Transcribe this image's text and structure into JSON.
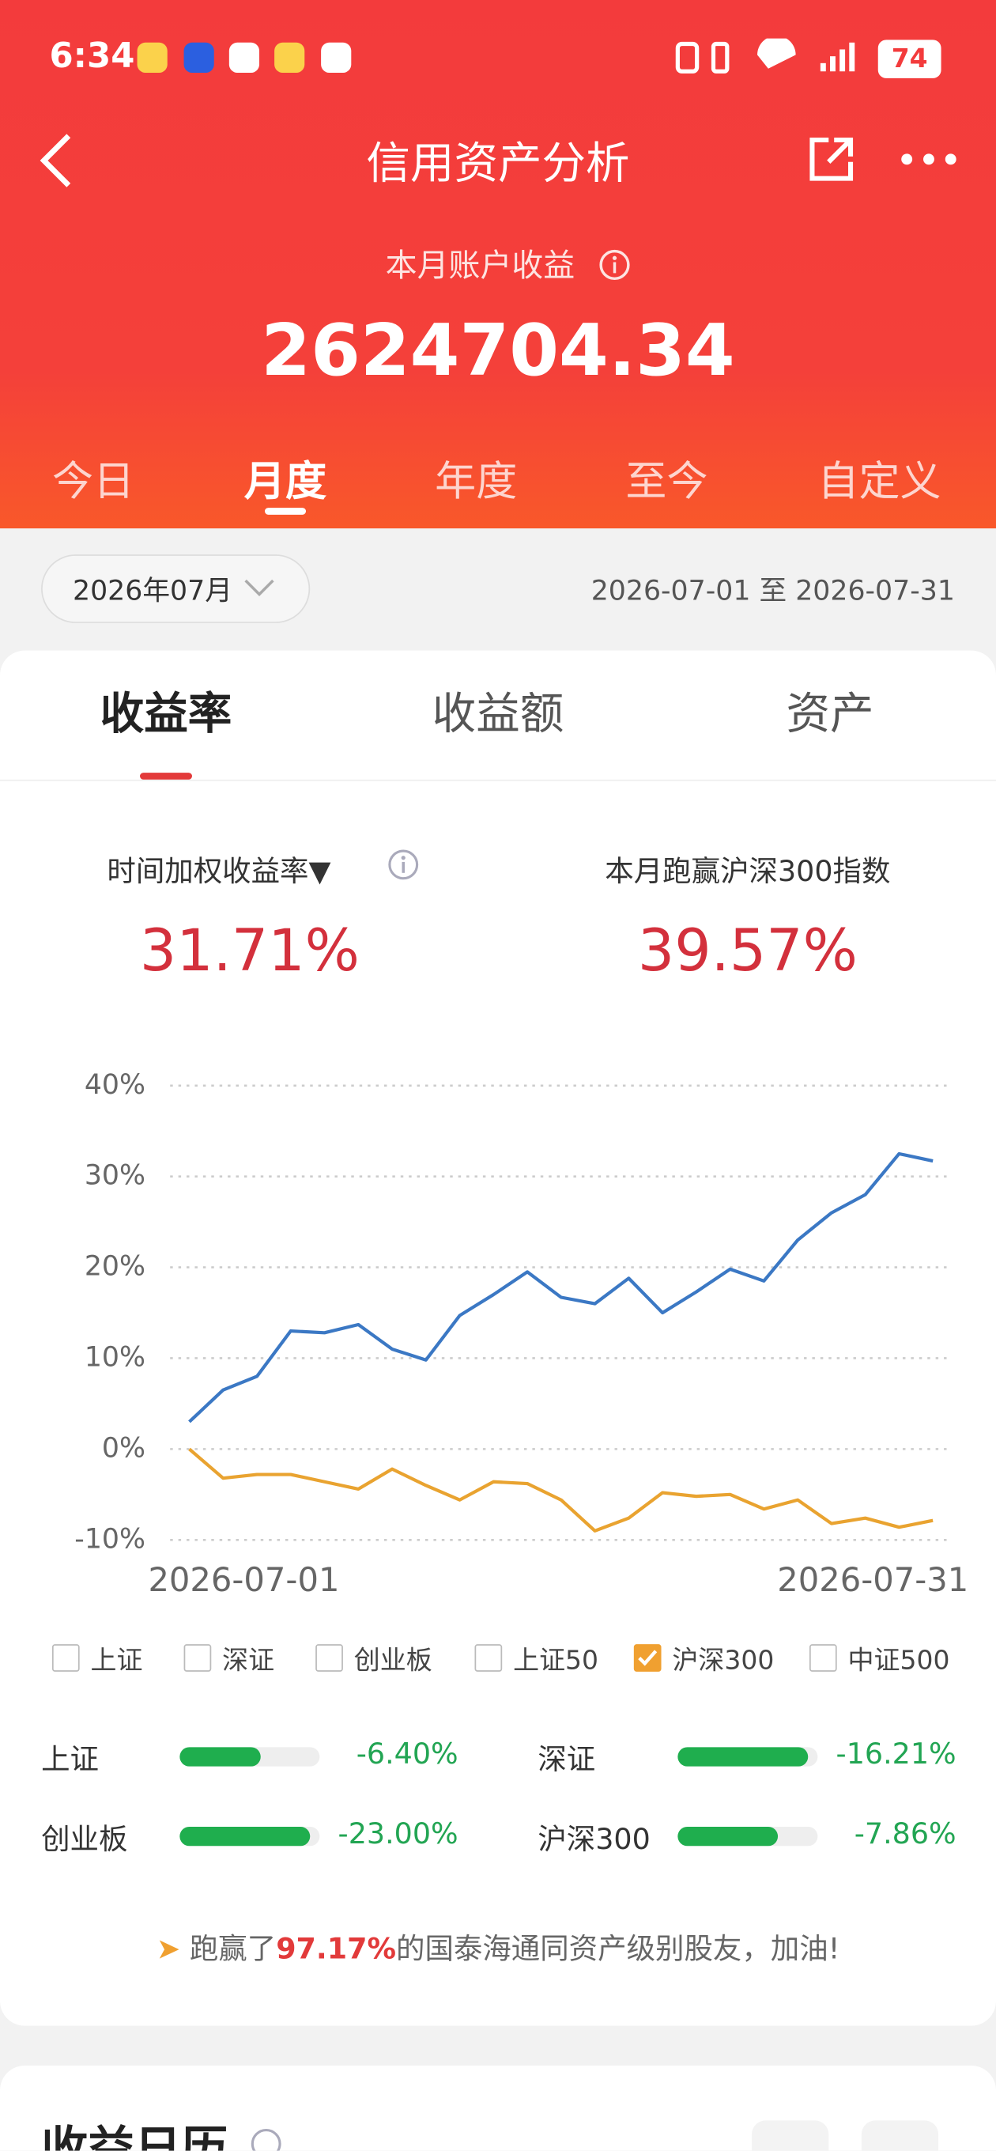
{
  "status_bar": {
    "time": "6:34",
    "battery": "74"
  },
  "header": {
    "title": "信用资产分析",
    "summary_label": "本月账户收益",
    "summary_value": "2624704.34"
  },
  "period_tabs": {
    "items": [
      "今日",
      "月度",
      "年度",
      "至今",
      "自定义"
    ],
    "active": 1
  },
  "date_selector": {
    "month": "2026年07月",
    "range": "2026-07-01 至 2026-07-31"
  },
  "metric_tabs": {
    "items": [
      "收益率",
      "收益额",
      "资产"
    ],
    "active": 0
  },
  "metrics": [
    {
      "label": "时间加权收益率▼",
      "value": "31.71%"
    },
    {
      "label": "本月跑赢沪深300指数",
      "value": "39.57%"
    }
  ],
  "chart_data": {
    "type": "line",
    "categories": [
      "2026-07-01",
      null,
      null,
      null,
      null,
      null,
      null,
      null,
      null,
      null,
      null,
      null,
      null,
      null,
      null,
      null,
      null,
      null,
      null,
      null,
      null,
      null,
      "2026-07-31"
    ],
    "series": [
      {
        "color": "#3b78c4",
        "values": [
          3.0,
          6.5,
          8.0,
          13.0,
          12.8,
          13.7,
          11.0,
          9.8,
          14.7,
          17.0,
          19.5,
          16.7,
          16.0,
          18.8,
          15.0,
          17.3,
          19.8,
          18.5,
          23.0,
          26.0,
          28.0,
          32.5,
          31.71
        ]
      },
      {
        "color": "#e9a330",
        "values": [
          0,
          -3.2,
          -2.8,
          -2.8,
          -3.6,
          -4.4,
          -2.2,
          -4.0,
          -5.6,
          -3.6,
          -3.8,
          -5.6,
          -9.0,
          -7.6,
          -4.8,
          -5.2,
          -5.0,
          -6.6,
          -5.6,
          -8.2,
          -7.6,
          -8.6,
          -7.86
        ]
      }
    ],
    "ylim": [
      -10,
      40
    ],
    "yticks": [
      {
        "value": -10,
        "label": "-10%"
      },
      {
        "value": 0,
        "label": "0%"
      },
      {
        "value": 10,
        "label": "10%"
      },
      {
        "value": 20,
        "label": "20%"
      },
      {
        "value": 30,
        "label": "30%"
      },
      {
        "value": 40,
        "label": "40%"
      }
    ],
    "grid": true
  },
  "index_options": [
    {
      "label": "上证",
      "checked": false
    },
    {
      "label": "深证",
      "checked": false
    },
    {
      "label": "创业板",
      "checked": false
    },
    {
      "label": "上证50",
      "checked": false
    },
    {
      "label": "沪深300",
      "checked": true
    },
    {
      "label": "中证500",
      "checked": false
    }
  ],
  "comparisons": [
    {
      "label": "上证",
      "value": "-6.40%",
      "fill": 58
    },
    {
      "label": "深证",
      "value": "-16.21%",
      "fill": 93
    },
    {
      "label": "创业板",
      "value": "-23.00%",
      "fill": 93
    },
    {
      "label": "沪深300",
      "value": "-7.86%",
      "fill": 72
    }
  ],
  "note": {
    "before": "跑赢了",
    "highlight": "97.17%",
    "after": "的国泰海通同资产级别股友，加油!"
  },
  "calendar": {
    "title": "收益日历"
  }
}
